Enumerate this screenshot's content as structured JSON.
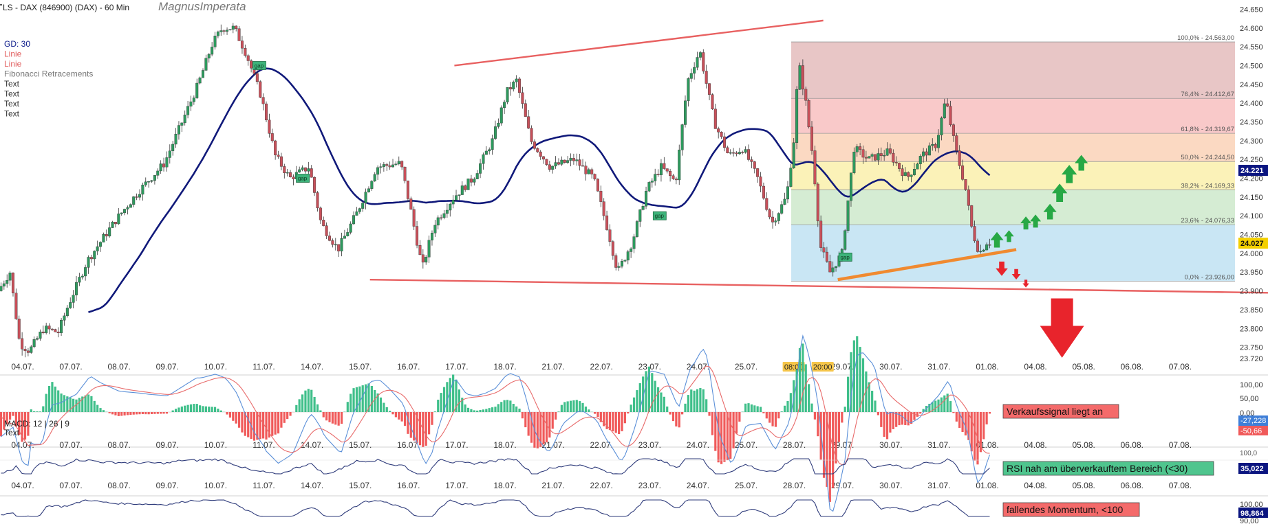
{
  "header": {
    "title": "LS - DAX (846900) (DAX) - 60 Min",
    "watermark": "MagnusImperata"
  },
  "legend": {
    "items": [
      {
        "label": "GD: 30",
        "color": "#0b1a8a"
      },
      {
        "label": "Linie",
        "color": "#e05a5a"
      },
      {
        "label": "Linie",
        "color": "#e05a5a"
      },
      {
        "label": "Fibonacci Retracements",
        "color": "#777777"
      },
      {
        "label": "Text",
        "color": "#333333"
      },
      {
        "label": "Text",
        "color": "#333333"
      },
      {
        "label": "Text",
        "color": "#333333"
      },
      {
        "label": "Text",
        "color": "#333333"
      }
    ]
  },
  "colors": {
    "bull": "#2e9a5e",
    "bear": "#c8505a",
    "ma": "#10197a",
    "trend_red": "#e86060",
    "trend_orange": "#f08a30",
    "arrow_green": "#27a845",
    "arrow_red": "#e8242c",
    "gap_fill": "#3db37a",
    "macd_pos": "#3fbf8a",
    "macd_neg": "#f05a5a",
    "rsi_line": "#2d3a7a",
    "badge_red": "#f46a6a",
    "badge_green": "#4fc58e",
    "price_badge": "#0b1580",
    "price_badge_yellow": "#f4d000"
  },
  "chart_data": [
    {
      "type": "candlestick",
      "title": "LS - DAX (846900) (DAX) - 60 Min",
      "x_labels": [
        "04.07.",
        "07.07.",
        "08.07.",
        "09.07.",
        "10.07.",
        "11.07.",
        "14.07.",
        "15.07.",
        "16.07.",
        "17.07.",
        "18.07.",
        "21.07.",
        "22.07.",
        "23.07.",
        "24.07.",
        "25.07.",
        "28.07.",
        "29.07.",
        "30.07.",
        "31.07.",
        "01.08.",
        "04.08.",
        "05.08.",
        "06.08.",
        "07.08."
      ],
      "x_labels_dates": [
        "04.07.",
        "07.07.",
        "08.07.",
        "09.07.",
        "10.07.",
        "11.07.",
        "14.07.",
        "15.07.",
        "16.07.",
        "17.07.",
        "18.07.",
        "21.07.",
        "22.07.",
        "23.07.",
        "24.07.",
        "25.07.",
        "28.07.",
        "29.07.",
        "30.07.",
        "31.07.",
        "01.08.",
        "04.08.",
        "05.08.",
        "06.08.",
        "07.08."
      ],
      "time_badges": [
        {
          "label": "08:00",
          "day": "28.07."
        },
        {
          "label": "20:00",
          "day": "29.07."
        }
      ],
      "y_ticks": [
        "24.650",
        "24.600",
        "24.550",
        "24.500",
        "24.450",
        "24.400",
        "24.350",
        "24.300",
        "24.250",
        "24.200",
        "24.150",
        "24.100",
        "24.050",
        "24.000",
        "23.950",
        "23.900",
        "23.850",
        "23.800",
        "23.750",
        "23.720"
      ],
      "ylim": [
        23720,
        24660
      ],
      "last_price": "24.027",
      "ma_badge": "24.221",
      "ma_label": "GD: 30",
      "key_points": [
        {
          "day": "04.07.",
          "low": 23720,
          "high": 23830
        },
        {
          "day": "10.07.",
          "high": 24630
        },
        {
          "day": "11.07.",
          "low": 24180
        },
        {
          "day": "14.07.",
          "low": 23970
        },
        {
          "day": "15.07.",
          "high": 24260
        },
        {
          "day": "16.07.",
          "low": 23930
        },
        {
          "day": "18.07.",
          "high": 24490
        },
        {
          "day": "21.07.",
          "low": 24180
        },
        {
          "day": "22.07.",
          "low": 23925
        },
        {
          "day": "24.07.",
          "high": 24560
        },
        {
          "day": "25.07.",
          "low": 24070
        },
        {
          "day": "28.07.",
          "high": 24545
        },
        {
          "day": "29.07.",
          "low": 23926
        },
        {
          "day": "31.07.",
          "high": 24430
        },
        {
          "day": "31.07.",
          "low": 23990
        }
      ],
      "fibonacci": [
        {
          "label": "100,0% - 24.563,00",
          "value": 24563
        },
        {
          "label": "76,4% - 24.412,67",
          "value": 24412.67
        },
        {
          "label": "61,8% - 24.319,67",
          "value": 24319.67
        },
        {
          "label": "50,0% - 24.244,50",
          "value": 24244.5
        },
        {
          "label": "38,2% - 24.169,33",
          "value": 24169.33
        },
        {
          "label": "23,6% - 24.076,33",
          "value": 24076.33
        },
        {
          "label": "0,0% - 23.926,00",
          "value": 23926
        }
      ],
      "gap_labels": [
        "gap",
        "gap",
        "gap",
        "gap"
      ]
    },
    {
      "type": "bar",
      "name": "MACD",
      "label": "MACD: 12 | 26 | 9",
      "sub_label": "Text",
      "y_ticks": [
        "100,00",
        "50,00",
        "0,00"
      ],
      "value_badge_1": "-27,228",
      "value_badge_2": "-50,66",
      "signal_text": "Verkaufssignal liegt an"
    },
    {
      "type": "line",
      "name": "RSI",
      "y_ticks": [
        "100,0"
      ],
      "value_badge": "35,022",
      "signal_text": "RSI nah am überverkauftem Bereich (<30)"
    },
    {
      "type": "line",
      "name": "Momentum",
      "y_ticks": [
        "100,00",
        "90,00"
      ],
      "value_badge": "98,864",
      "signal_text": "fallendes Momentum, <100"
    }
  ]
}
